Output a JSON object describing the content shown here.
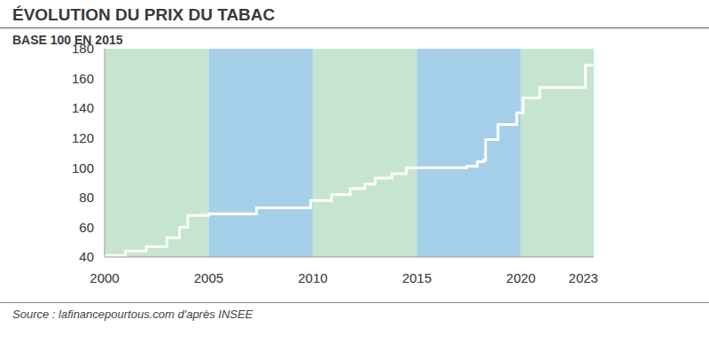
{
  "chart_data": {
    "type": "line",
    "title": "ÉVOLUTION DU PRIX DU TABAC",
    "subtitle": "BASE 100 EN 2015",
    "source": "Source : lafinancepourtous.com d'après INSEE",
    "x": [
      2000,
      2001,
      2002,
      2003,
      2003.6,
      2004,
      2005,
      2007.3,
      2009.9,
      2010.9,
      2011.8,
      2012.5,
      2013,
      2013.8,
      2014.5,
      2017.4,
      2017.9,
      2018.2,
      2018.3,
      2018.9,
      2019.8,
      2020.1,
      2020.9,
      2023.1,
      2023.4
    ],
    "values": [
      41,
      44,
      47,
      53,
      60,
      68,
      69,
      73,
      78,
      82,
      86,
      89,
      93,
      96,
      100,
      101,
      104,
      105,
      119,
      129,
      137,
      147,
      154,
      169,
      170
    ],
    "color": "#ffffff",
    "line_style": "step",
    "xlim": [
      2000,
      2023.5
    ],
    "xticks": [
      2000,
      2005,
      2010,
      2015,
      2020,
      2023
    ],
    "ylim": [
      40,
      180
    ],
    "yticks": [
      40,
      60,
      80,
      100,
      120,
      140,
      160,
      180
    ],
    "grid": false
  }
}
